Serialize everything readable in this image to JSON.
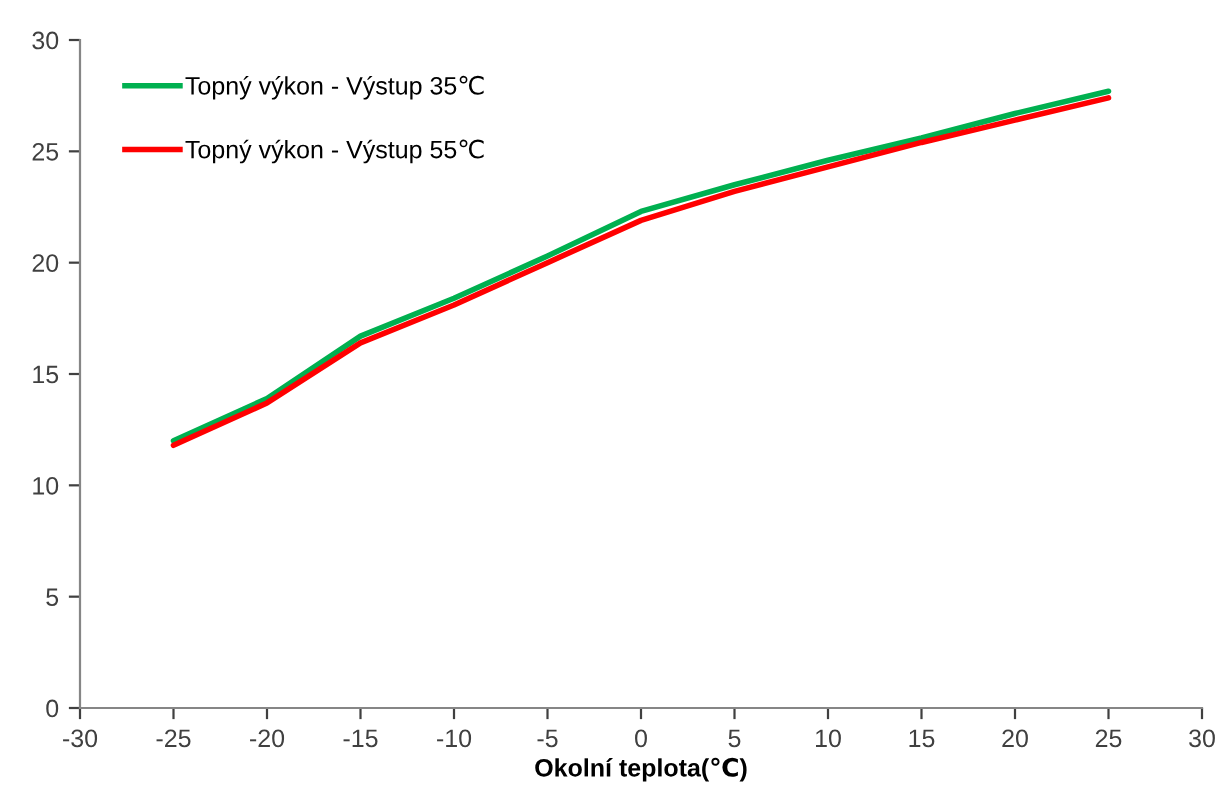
{
  "chart_data": {
    "type": "line",
    "xlabel": "Okolní teplota(℃)",
    "x": [
      -25,
      -20,
      -15,
      -10,
      -5,
      0,
      5,
      10,
      15,
      20,
      25
    ],
    "series": [
      {
        "name": "Topný výkon - Výstup 35℃",
        "color": "#00b050",
        "values": [
          12.0,
          13.9,
          16.7,
          18.4,
          20.3,
          22.3,
          23.5,
          24.6,
          25.6,
          26.7,
          27.7
        ]
      },
      {
        "name": "Topný výkon - Výstup 55℃",
        "color": "#ff0000",
        "values": [
          11.8,
          13.7,
          16.4,
          18.1,
          20.0,
          21.9,
          23.2,
          24.3,
          25.4,
          26.4,
          27.4
        ]
      }
    ],
    "xlim": [
      -30,
      30
    ],
    "xticks": [
      -30,
      -25,
      -20,
      -15,
      -10,
      -5,
      0,
      5,
      10,
      15,
      20,
      25,
      30
    ],
    "ylim": [
      0,
      30
    ],
    "yticks": [
      0,
      5,
      10,
      15,
      20,
      25,
      30
    ],
    "grid": false,
    "legend": "top left",
    "marker": "none",
    "line_style": "solid"
  }
}
